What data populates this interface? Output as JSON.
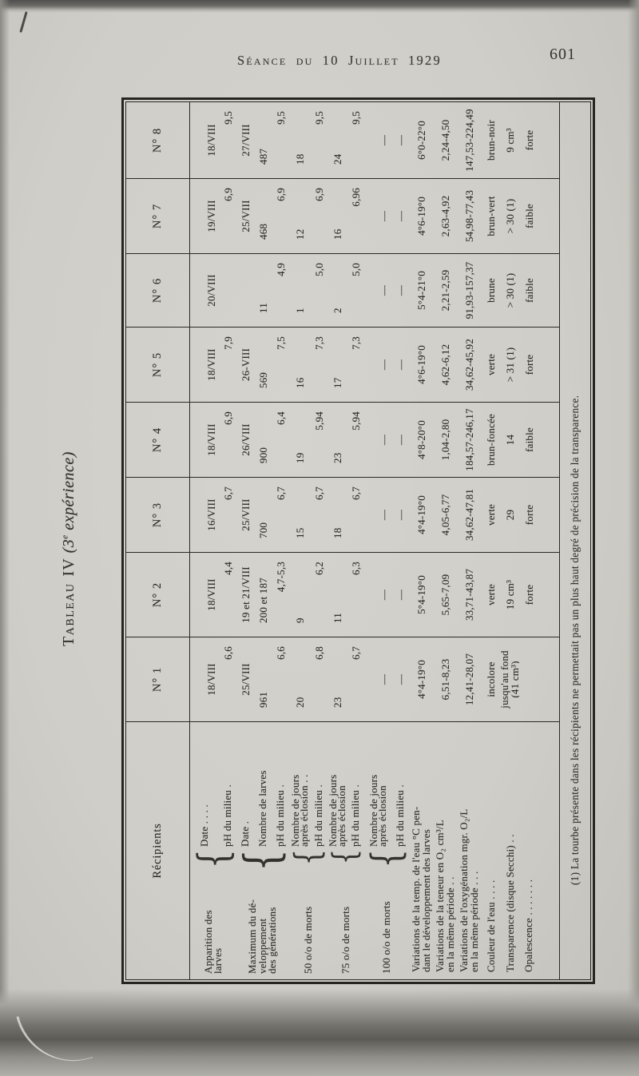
{
  "colors": {
    "paper": "#d1cfc9",
    "ink": "#2e2d28"
  },
  "header": {
    "session_title": "Séance du 10 Juillet 1929",
    "page_number": "601"
  },
  "title": {
    "tableau": "Tableau",
    "numeral": "IV",
    "exp_open": "(3",
    "exp_sup": "e",
    "exp_rest": " expérience)"
  },
  "footnote": "(1) La tourbe présente dans les récipients ne permettait pas un plus haut degré de précision de la transparence.",
  "table": {
    "corner_label": "Récipients",
    "col_headers": [
      "N° 1",
      "N° 2",
      "N° 3",
      "N° 4",
      "N° 5",
      "N° 6",
      "N° 7",
      "N° 8"
    ],
    "label_groups": [
      {
        "start": 0,
        "span": 2,
        "label": "Apparition des\nlarves",
        "subs": [
          "Date  .   .   .   .",
          "pH du milieu ."
        ]
      },
      {
        "start": 2,
        "span": 3,
        "label": "Maximum du dé-\nveloppement\ndes générations",
        "subs": [
          "Date .",
          "Nombre de larves",
          "pH du milieu ."
        ]
      },
      {
        "start": 5,
        "span": 2,
        "label": "50 o/o de morts",
        "subs": [
          "Nombre de jours\naprès éclosion . .",
          "pH du milieu ."
        ]
      },
      {
        "start": 7,
        "span": 2,
        "label": "75 o/o de morts",
        "subs": [
          "Nombre de jours\naprès éclosion",
          "pH du milieu ."
        ]
      },
      {
        "start": 9,
        "span": 2,
        "label": "100 o/o de morts",
        "subs": [
          "Nombre de jours\naprès éclosion",
          "pH du milieu ."
        ]
      }
    ],
    "rows": [
      {
        "h": 36,
        "align": "mid",
        "valign": "bottom",
        "values": [
          "18/VIII",
          "18/VIII",
          "16/VIII",
          "18/VIII",
          "18/VIII",
          "20/VIII",
          "19/VIII",
          "18/VIII"
        ]
      },
      {
        "h": 22,
        "align": "high",
        "values": [
          "6,6",
          "4,4",
          "6,7",
          "6,9",
          "7,9",
          "",
          "6,9",
          "9,5"
        ]
      },
      {
        "h": 22,
        "align": "mid",
        "values": [
          "25/VIII",
          "19 et 21/VIII",
          "25/VIII",
          "26/VIII",
          "26-VIII",
          "",
          "25/VIII",
          "27/VIII"
        ]
      },
      {
        "h": 22,
        "align": "low",
        "values": [
          "961",
          "200 et 187",
          "700",
          "900",
          "569",
          "11",
          "468",
          "487"
        ]
      },
      {
        "h": 22,
        "align": "high",
        "values": [
          "6,6",
          "4,7-5,3",
          "6,7",
          "6,4",
          "7,5",
          "4,9",
          "6,9",
          "9,5"
        ]
      },
      {
        "h": 26,
        "align": "low",
        "values": [
          "20",
          "9",
          "15",
          "19",
          "16",
          "1",
          "12",
          "18"
        ]
      },
      {
        "h": 22,
        "align": "high",
        "values": [
          "6,8",
          "6,2",
          "6,7",
          "5,94",
          "7,3",
          "5,0",
          "6,9",
          "9,5"
        ]
      },
      {
        "h": 24,
        "align": "low",
        "values": [
          "23",
          "11",
          "18",
          "23",
          "17",
          "2",
          "16",
          "24"
        ]
      },
      {
        "h": 22,
        "align": "high",
        "values": [
          "6,7",
          "6,3",
          "6,7",
          "5,94",
          "7,3",
          "5,0",
          "6,96",
          "9,5"
        ]
      },
      {
        "h": 34,
        "align": "mid",
        "valign": "bottom",
        "values": [
          "—",
          "—",
          "—",
          "—",
          "—",
          "—",
          "—",
          "—"
        ]
      },
      {
        "h": 22,
        "align": "mid",
        "values": [
          "—",
          "—",
          "—",
          "—",
          "—",
          "—",
          "—",
          "—"
        ]
      },
      {
        "h": 30,
        "align": "mid",
        "label": "Variations de la temp. de l'eau °C pen-\ndant le développement des larves",
        "values": [
          "4°4-19°0",
          "5°4-19°0",
          "4°4-19°0",
          "4°8-20°0",
          "4°6-19°0",
          "5°4-21°0",
          "4°6-19°0",
          "6°0-22°0"
        ]
      },
      {
        "h": 30,
        "align": "mid",
        "label": "Variations de la teneur en O₂ cm³/L\nen la même période  .   .",
        "values": [
          "6,51-8,23",
          "5,65-7,09",
          "4,05-6,77",
          "1,04-2,80",
          "4,62-6,12",
          "2,21-2,59",
          "2,63-4,92",
          "2,24-4,50"
        ]
      },
      {
        "h": 30,
        "align": "mid",
        "label": "Variations de l'oxygénation mgr. O₂/L\nen la même période  .   .   .",
        "values": [
          "12,41-28,07",
          "33,71-43,87",
          "34,62-47,81",
          "184,57-246,17",
          "34,62-45,92",
          "91,93-157,37",
          "54,98-77,43",
          "147,53-224,49"
        ]
      },
      {
        "h": 24,
        "align": "mid",
        "label": "Couleur de l'eau  .   .   .   .",
        "values": [
          "incolore",
          "verte",
          "verte",
          "brun-foncée",
          "verte",
          "brune",
          "brun-vert",
          "brun-noir"
        ]
      },
      {
        "h": 24,
        "align": "mid",
        "label": "Transparence (disque Secchi)  .   .",
        "values": [
          "jusqu'au fond (41 cm³)",
          "19 cm³",
          "29",
          "14",
          "> 31 (1)",
          "> 30 (1)",
          "> 30 (1)",
          "9 cm³"
        ]
      },
      {
        "h": 50,
        "align": "mid",
        "valign": "top",
        "label": "Opalescence .   .   .   .   .   .   .",
        "values": [
          "",
          "forte",
          "forte",
          "faible",
          "forte",
          "faible",
          "faible",
          "forte"
        ]
      }
    ]
  }
}
